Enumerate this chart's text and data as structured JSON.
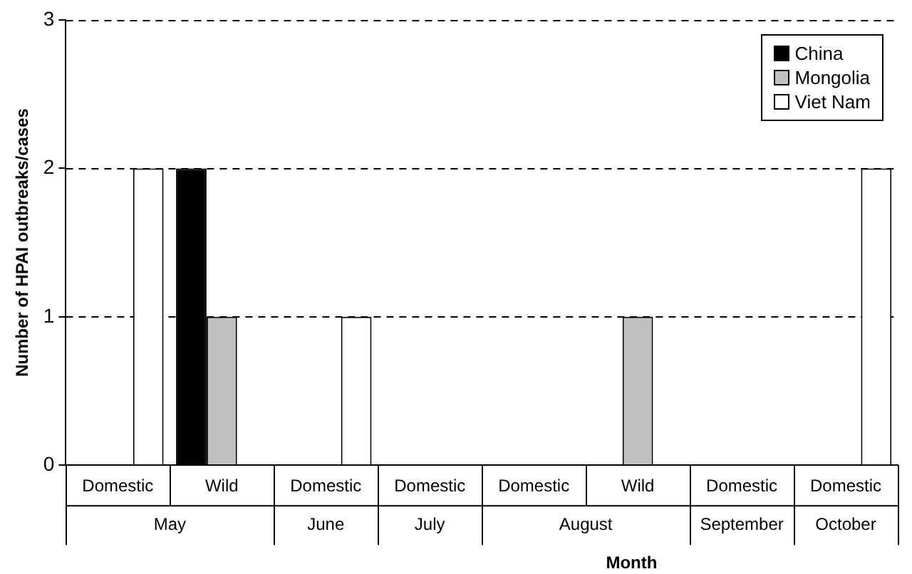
{
  "chart_data": {
    "type": "bar",
    "ylabel": "Number of HPAI outbreaks/cases",
    "xlabel": "Month",
    "categories": [
      "Domestic",
      "Wild",
      "Domestic",
      "Domestic",
      "Domestic",
      "Wild",
      "Domestic",
      "Domestic"
    ],
    "series": [
      {
        "name": "China",
        "color": "#000000",
        "values": [
          null,
          2,
          null,
          null,
          null,
          null,
          null,
          null
        ]
      },
      {
        "name": "Mongolia",
        "color": "#c0c0c0",
        "values": [
          null,
          1,
          null,
          null,
          null,
          1,
          null,
          null
        ]
      },
      {
        "name": "Viet Nam",
        "color": "#ffffff",
        "values": [
          2,
          null,
          1,
          null,
          null,
          null,
          null,
          2
        ]
      }
    ],
    "annotations": [
      "May",
      "June",
      "July",
      "August",
      "September",
      "October"
    ],
    "ylim": [
      0,
      3
    ],
    "yticks": [
      0,
      1,
      2,
      3
    ],
    "grid": "y",
    "legend": "top right"
  }
}
